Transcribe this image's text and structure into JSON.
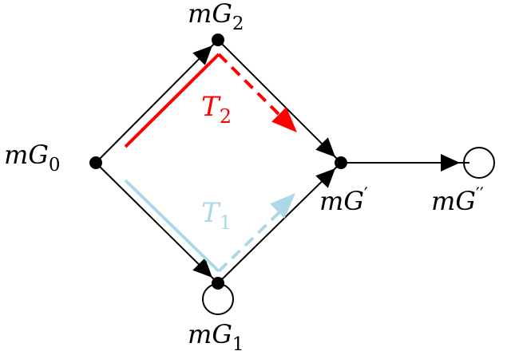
{
  "nodes": {
    "g0": {
      "base": "mG",
      "sub": "0"
    },
    "g1": {
      "base": "mG",
      "sub": "1"
    },
    "g2": {
      "base": "mG",
      "sub": "2"
    },
    "gp": {
      "base": "mG",
      "prime": "′"
    },
    "gpp": {
      "base": "mG",
      "prime": "′′"
    }
  },
  "paths": {
    "t1": {
      "base": "T",
      "sub": "1",
      "color": "#add8e6"
    },
    "t2": {
      "base": "T",
      "sub": "2",
      "color": "#ff0000"
    }
  },
  "colors": {
    "edge": "#000000",
    "node": "#000000"
  }
}
